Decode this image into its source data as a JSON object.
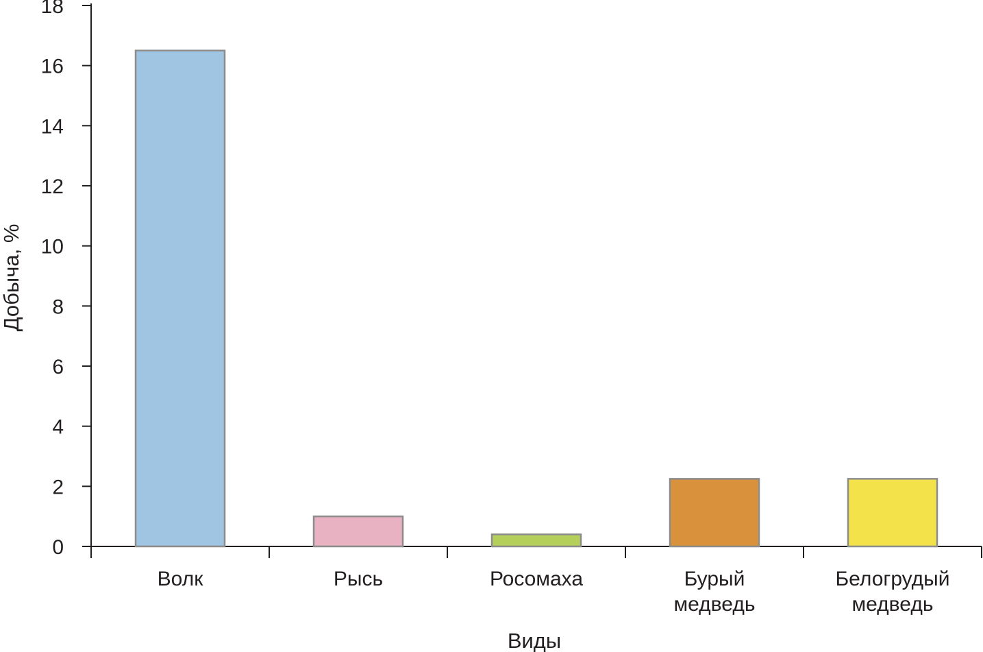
{
  "chart_data": {
    "type": "bar",
    "title": "",
    "xlabel": "Виды",
    "ylabel": "Добыча, %",
    "categories": [
      [
        "Волк"
      ],
      [
        "Рысь"
      ],
      [
        "Росомаха"
      ],
      [
        "Бурый",
        "медведь"
      ],
      [
        "Белогрудый",
        "медведь"
      ]
    ],
    "values": [
      16.5,
      1.0,
      0.4,
      2.25,
      2.25
    ],
    "colors": [
      "#a0c5e3",
      "#e9b2c2",
      "#b5d05a",
      "#d9913b",
      "#f4e24a"
    ],
    "bar_edge_color": "#8c8c8c",
    "ylim": [
      0,
      18
    ],
    "yticks": [
      0,
      2,
      4,
      6,
      8,
      10,
      12,
      14,
      16,
      18
    ],
    "grid": false,
    "legend": "none"
  }
}
